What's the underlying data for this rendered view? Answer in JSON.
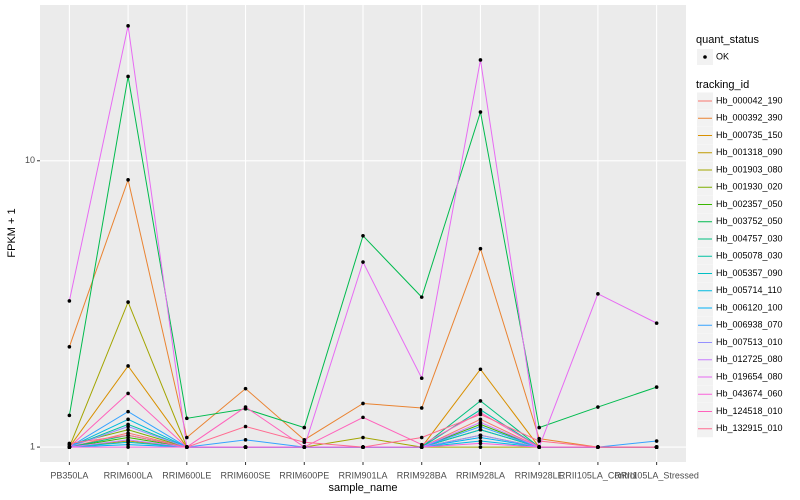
{
  "chart_data": {
    "type": "line",
    "x_label": "sample_name",
    "y_label": "FPKM + 1",
    "y_scale": "log",
    "grid": true,
    "categories": [
      "PB350LA",
      "RRIM600LA",
      "RRIM600LE",
      "RRIM600SE",
      "RRIM600PE",
      "RRIM901LA",
      "RRIM928BA",
      "RRIM928LA",
      "RRIM928LE",
      "RRII105LA_Control",
      "RRII105LA_Stressed"
    ],
    "ylim": [
      0.887,
      35
    ],
    "yticks": [
      1,
      10
    ],
    "point_legend_title": "quant_status",
    "point_legend_entries": [
      "OK"
    ],
    "point_color": "#000000",
    "legend_title": "tracking_id",
    "series": [
      {
        "name": "Hb_000042_190",
        "color": "#F8766D",
        "values": [
          1,
          1.12,
          1,
          1,
          1,
          1,
          1,
          1.25,
          1,
          1,
          1
        ]
      },
      {
        "name": "Hb_000392_390",
        "color": "#EA8331",
        "values": [
          2.24,
          8.58,
          1.08,
          1.6,
          1.06,
          1.42,
          1.37,
          4.93,
          1.07,
          1,
          1
        ]
      },
      {
        "name": "Hb_000735_150",
        "color": "#D89000",
        "values": [
          1,
          1.92,
          1,
          1,
          1,
          1,
          1,
          1.87,
          1,
          1,
          1
        ]
      },
      {
        "name": "Hb_001318_090",
        "color": "#C09B00",
        "values": [
          1,
          1.05,
          1,
          1,
          1,
          1,
          1,
          1.1,
          1,
          1,
          1
        ]
      },
      {
        "name": "Hb_001903_080",
        "color": "#A3A500",
        "values": [
          1,
          3.21,
          1,
          1,
          1,
          1.08,
          1,
          1,
          1,
          1,
          1
        ]
      },
      {
        "name": "Hb_001930_020",
        "color": "#7CAE00",
        "values": [
          1.02,
          1.15,
          1,
          1,
          1,
          1,
          1,
          1.15,
          1,
          1,
          1
        ]
      },
      {
        "name": "Hb_002357_050",
        "color": "#39B600",
        "values": [
          1,
          1.08,
          1,
          1,
          1,
          1,
          1,
          1.2,
          1,
          1,
          1
        ]
      },
      {
        "name": "Hb_003752_050",
        "color": "#00BB4E",
        "values": [
          1.29,
          19.7,
          1.26,
          1.36,
          1.17,
          5.47,
          3.34,
          14.8,
          1.17,
          1.38,
          1.62
        ]
      },
      {
        "name": "Hb_004757_030",
        "color": "#00BF7D",
        "values": [
          1,
          1.1,
          1,
          1,
          1,
          1,
          1,
          1.45,
          1,
          1,
          1
        ]
      },
      {
        "name": "Hb_005078_030",
        "color": "#00C1A3",
        "values": [
          1,
          1.2,
          1,
          1,
          1,
          1,
          1,
          1.35,
          1,
          1,
          1
        ]
      },
      {
        "name": "Hb_005357_090",
        "color": "#00BFC4",
        "values": [
          1,
          1.04,
          1,
          1,
          1,
          1,
          1,
          1.15,
          1,
          1,
          1
        ]
      },
      {
        "name": "Hb_005714_110",
        "color": "#00BAE0",
        "values": [
          1,
          1.25,
          1,
          1,
          1,
          1,
          1,
          1.05,
          1,
          1,
          1
        ]
      },
      {
        "name": "Hb_006120_100",
        "color": "#00B0F6",
        "values": [
          1,
          1.02,
          1,
          1,
          1,
          1,
          1,
          1.08,
          1,
          1,
          1
        ]
      },
      {
        "name": "Hb_006938_070",
        "color": "#35A2FF",
        "values": [
          1,
          1.33,
          1,
          1.06,
          1,
          1,
          1,
          1.18,
          1,
          1,
          1.05
        ]
      },
      {
        "name": "Hb_007513_010",
        "color": "#9590FF",
        "values": [
          1,
          1.18,
          1,
          1,
          1,
          1,
          1,
          1.1,
          1,
          1,
          1
        ]
      },
      {
        "name": "Hb_012725_080",
        "color": "#C77CFF",
        "values": [
          1,
          1.06,
          1,
          1,
          1,
          1,
          1,
          1.22,
          1,
          1,
          1
        ]
      },
      {
        "name": "Hb_019654_080",
        "color": "#E76BF3",
        "values": [
          3.24,
          29.6,
          1,
          1,
          1,
          4.43,
          1.74,
          22.5,
          1,
          3.43,
          2.71
        ]
      },
      {
        "name": "Hb_043674_060",
        "color": "#FA62DB",
        "values": [
          1,
          1,
          1,
          1,
          1,
          1,
          1,
          1.03,
          1,
          1,
          1
        ]
      },
      {
        "name": "Hb_124518_010",
        "color": "#FF62BC",
        "values": [
          1,
          1.54,
          1,
          1.38,
          1,
          1.27,
          1.02,
          1.32,
          1,
          1,
          1
        ]
      },
      {
        "name": "Hb_132915_010",
        "color": "#FF6C91",
        "values": [
          1.03,
          1.1,
          1,
          1.18,
          1.04,
          1,
          1.08,
          1.3,
          1.05,
          1,
          1
        ]
      }
    ]
  }
}
